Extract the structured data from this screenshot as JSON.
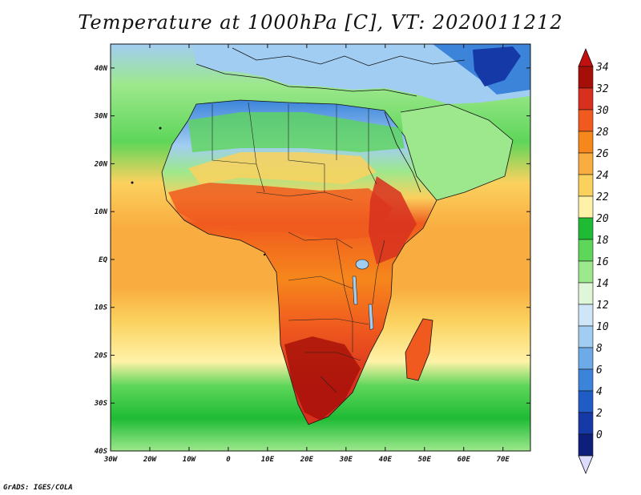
{
  "title": "Temperature at 1000hPa [C], VT: 2020011212",
  "credit": "GrADS: IGES/COLA",
  "map": {
    "lon_range": [
      -30,
      77
    ],
    "lat_range": [
      -40,
      45
    ],
    "lon_ticks": [
      "30W",
      "20W",
      "10W",
      "0",
      "10E",
      "20E",
      "30E",
      "40E",
      "50E",
      "60E",
      "70E"
    ],
    "lat_ticks": [
      "40N",
      "30N",
      "20N",
      "10N",
      "EQ",
      "10S",
      "20S",
      "30S",
      "40S"
    ],
    "variable": "temperature",
    "units": "C",
    "pressure_level": "1000hPa",
    "valid_time": "2020011212"
  },
  "colorbar": {
    "labels": [
      "34",
      "32",
      "30",
      "28",
      "26",
      "24",
      "22",
      "20",
      "18",
      "16",
      "14",
      "12",
      "10",
      "8",
      "6",
      "4",
      "2",
      "0"
    ],
    "colors": [
      "#a50f08",
      "#d7301f",
      "#f05a1e",
      "#f6871c",
      "#f9ad40",
      "#fbd15e",
      "#fff2a8",
      "#1fbb35",
      "#5ed65a",
      "#9de88c",
      "#dff7d8",
      "#cfe6f8",
      "#a2cdf2",
      "#6dabe8",
      "#3c84da",
      "#1f5cc6",
      "#1639a8",
      "#0d1f7a"
    ],
    "upper_arrow_color": "#c21010",
    "lower_arrow_color": "#dcdcff"
  }
}
